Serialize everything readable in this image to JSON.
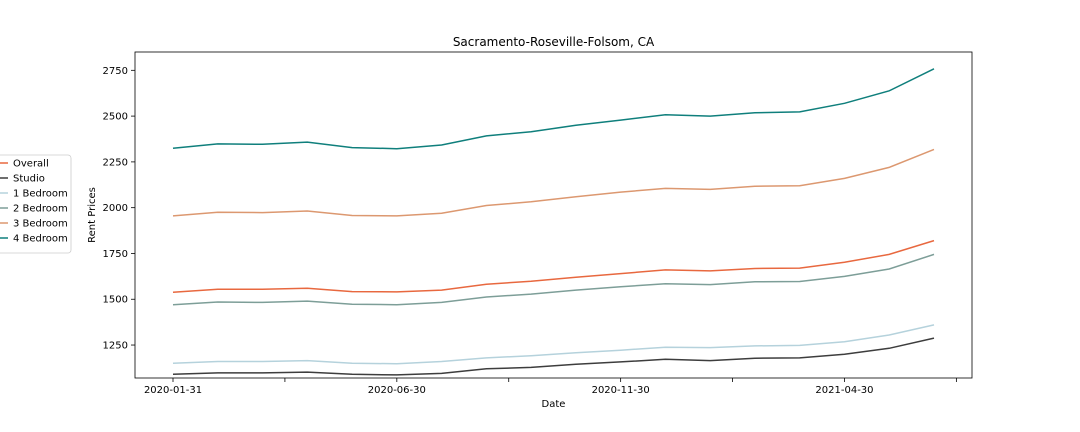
{
  "chart_data": {
    "type": "line",
    "title": "Sacramento-Roseville-Folsom, CA",
    "xlabel": "Date",
    "ylabel": "Rent Prices",
    "x": [
      "2020-01-31",
      "2020-02-29",
      "2020-03-31",
      "2020-04-30",
      "2020-05-31",
      "2020-06-30",
      "2020-07-31",
      "2020-08-31",
      "2020-09-30",
      "2020-10-31",
      "2020-11-30",
      "2020-12-31",
      "2021-01-31",
      "2021-02-28",
      "2021-03-31",
      "2021-04-30",
      "2021-05-31",
      "2021-06-30"
    ],
    "xticks": [
      "2020-01-31",
      "",
      "2020-06-30",
      "",
      "2020-11-30",
      "",
      "2021-04-30",
      ""
    ],
    "xtick_indices": [
      0,
      2.5,
      5,
      7.5,
      10,
      12.5,
      15,
      17.5
    ],
    "yticks": [
      1250,
      1500,
      1750,
      2000,
      2250,
      2500,
      2750
    ],
    "ylim": [
      1070,
      2850
    ],
    "grid": false,
    "legend_position": "center-left",
    "series": [
      {
        "name": "Overall",
        "color": "#e8683f",
        "values": [
          1538,
          1555,
          1555,
          1560,
          1542,
          1540,
          1550,
          1582,
          1598,
          1620,
          1640,
          1660,
          1655,
          1668,
          1670,
          1702,
          1745,
          1820
        ]
      },
      {
        "name": "Studio",
        "color": "#3d3d3d",
        "values": [
          1090,
          1098,
          1098,
          1102,
          1090,
          1087,
          1095,
          1120,
          1128,
          1145,
          1158,
          1172,
          1165,
          1178,
          1180,
          1200,
          1232,
          1288
        ]
      },
      {
        "name": "1 Bedroom",
        "color": "#b5d2dc",
        "values": [
          1150,
          1160,
          1160,
          1165,
          1150,
          1148,
          1160,
          1180,
          1192,
          1208,
          1222,
          1238,
          1236,
          1245,
          1248,
          1268,
          1305,
          1360
        ]
      },
      {
        "name": "2 Bedroom",
        "color": "#7d9e98",
        "values": [
          1470,
          1485,
          1483,
          1490,
          1473,
          1470,
          1483,
          1512,
          1528,
          1550,
          1568,
          1585,
          1580,
          1595,
          1597,
          1625,
          1665,
          1745
        ]
      },
      {
        "name": "3 Bedroom",
        "color": "#dc9870",
        "values": [
          1955,
          1975,
          1973,
          1982,
          1957,
          1955,
          1970,
          2012,
          2032,
          2060,
          2085,
          2105,
          2100,
          2117,
          2120,
          2160,
          2220,
          2318
        ]
      },
      {
        "name": "4 Bedroom",
        "color": "#0f7f7c",
        "values": [
          2325,
          2348,
          2346,
          2358,
          2328,
          2322,
          2342,
          2392,
          2415,
          2450,
          2478,
          2507,
          2500,
          2518,
          2523,
          2570,
          2638,
          2758
        ]
      }
    ]
  }
}
